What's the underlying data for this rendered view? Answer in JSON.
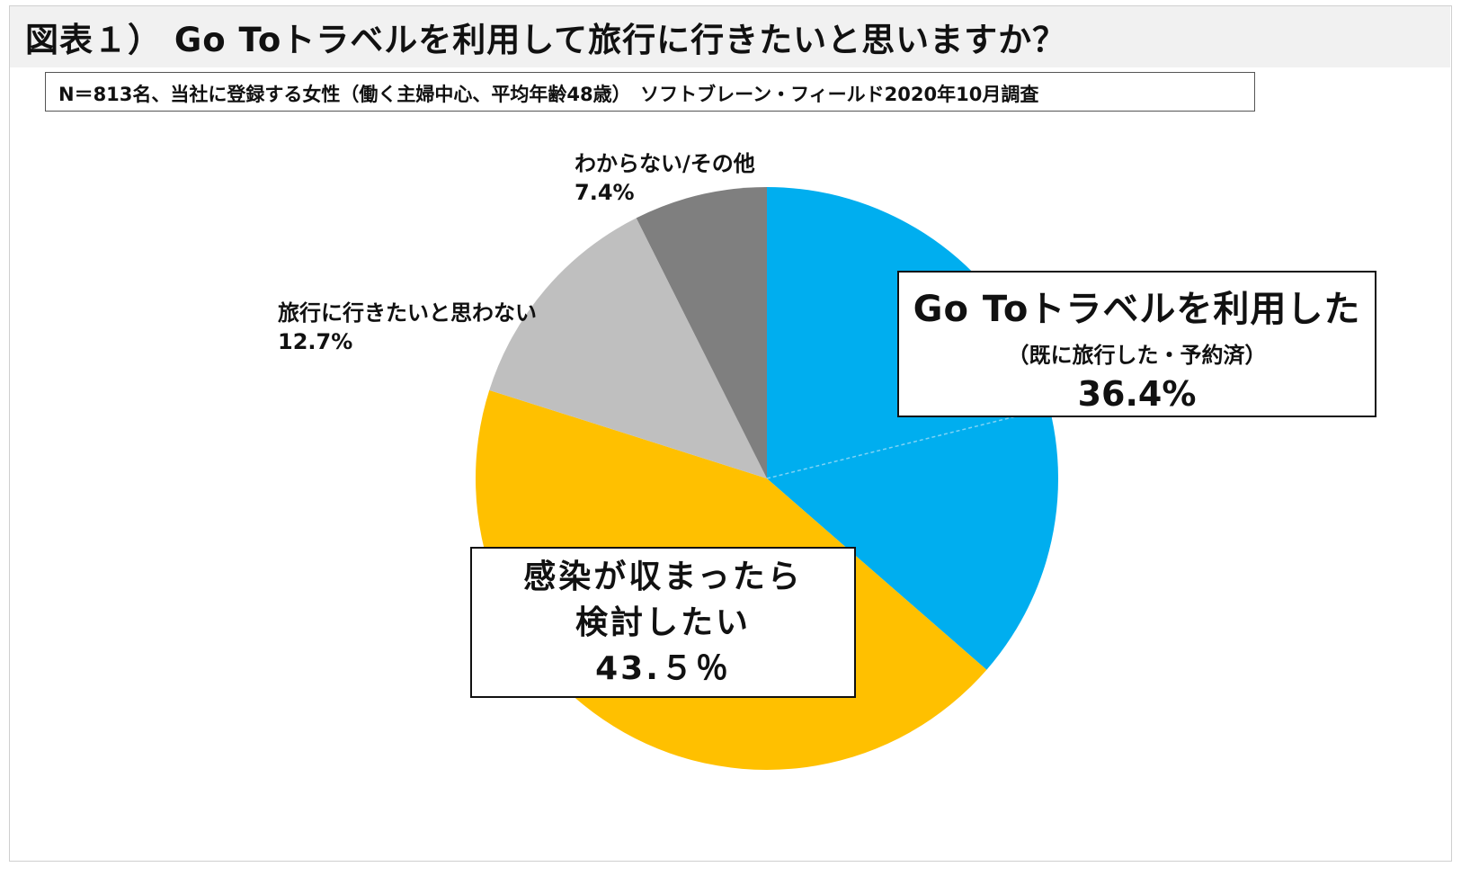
{
  "title": "図表１） Go Toトラベルを利用して旅行に行きたいと思いますか？",
  "subtitle": "N＝813名、当社に登録する女性（働く主婦中心、平均年齢48歳）　ソフトブレーン・フィールド2020年10月調査",
  "chart_data": {
    "type": "pie",
    "slices": [
      {
        "label": "Go Toトラベルを利用した",
        "sublabel": "（既に旅行した・予約済）",
        "value_label": "36.4%",
        "value": 36.4,
        "color": "#00AEEF",
        "sub_split": {
          "label": "既に旅行した・予約済",
          "note": "split shown by a faint divider"
        }
      },
      {
        "label": "感染が収まったら検討したい",
        "value_label": "43.５％",
        "value": 43.5,
        "color": "#FFC000"
      },
      {
        "label": "旅行に行きたいと思わない",
        "value_label": "12.7%",
        "value": 12.7,
        "color": "#BFBFBF"
      },
      {
        "label": "わからない/その他",
        "value_label": "7.4%",
        "value": 7.4,
        "color": "#7F7F7F"
      }
    ]
  },
  "callouts": {
    "goto": {
      "line1": "Go Toトラベルを利用した",
      "line2": "（既に旅行した・予約済）",
      "line3": "36.4%"
    },
    "covid": {
      "line1": "感染が収まったら",
      "line2": "検討したい",
      "line3": "43.５％"
    }
  },
  "labels": {
    "notwant": {
      "line1": "旅行に行きたいと思わない",
      "line2": "12.7%"
    },
    "other": {
      "line1": "わからない/その他",
      "line2": "7.4%"
    }
  }
}
